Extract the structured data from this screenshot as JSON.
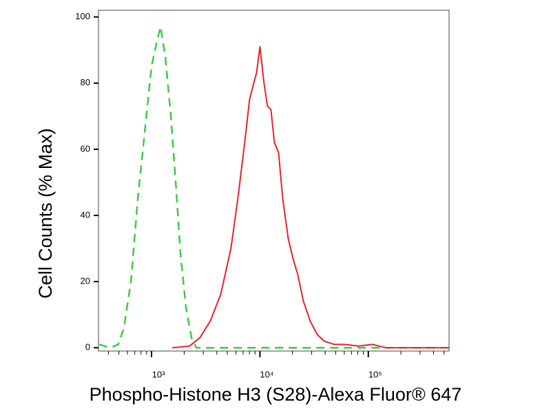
{
  "chart_data": {
    "type": "line",
    "xlabel": "Phospho-Histone H3 (S28)-Alexa Fluor® 647",
    "ylabel": "Cell Counts (% Max)",
    "xscale": "log",
    "xlim": [
      324,
      556000
    ],
    "ylim": [
      -1,
      102
    ],
    "xticks": [
      {
        "value": 1000,
        "label": "10³"
      },
      {
        "value": 10000,
        "label": "10⁴"
      },
      {
        "value": 100000,
        "label": "10⁵"
      }
    ],
    "xminorticks": [
      400,
      500,
      600,
      700,
      800,
      900,
      2000,
      3000,
      4000,
      5000,
      6000,
      7000,
      8000,
      9000,
      20000,
      30000,
      40000,
      50000,
      60000,
      70000,
      80000,
      90000,
      200000,
      300000,
      400000,
      500000
    ],
    "yticks": [
      0,
      20,
      40,
      60,
      80,
      100
    ],
    "series": [
      {
        "color": "#3ccc3c",
        "dashed": true,
        "x": [
          330,
          415,
          494,
          556,
          645,
          747,
          863,
          1000,
          1125,
          1210,
          1340,
          1508,
          1670,
          1853,
          2081,
          2340,
          2595,
          14000,
          556000
        ],
        "values": [
          1,
          0,
          1,
          6,
          20,
          45,
          65,
          85,
          93,
          97,
          88,
          70,
          50,
          28,
          12,
          3,
          0,
          0,
          0
        ]
      },
      {
        "color": "#e8202a",
        "dashed": false,
        "x": [
          1553,
          2240,
          2790,
          3478,
          4335,
          5400,
          6250,
          7240,
          8020,
          8770,
          9290,
          10000,
          10900,
          11740,
          12640,
          13600,
          14870,
          16230,
          18240,
          20200,
          22400,
          25200,
          29150,
          33800,
          39100,
          48700,
          60700,
          81400,
          109000,
          146000,
          556000
        ],
        "values": [
          0,
          0.5,
          3,
          8,
          16,
          30,
          45,
          62,
          75,
          80,
          83,
          91,
          80,
          73,
          72,
          62,
          59,
          45,
          33,
          27,
          22,
          14,
          8,
          4,
          2,
          1,
          1,
          0.5,
          1,
          0,
          0
        ]
      }
    ]
  }
}
